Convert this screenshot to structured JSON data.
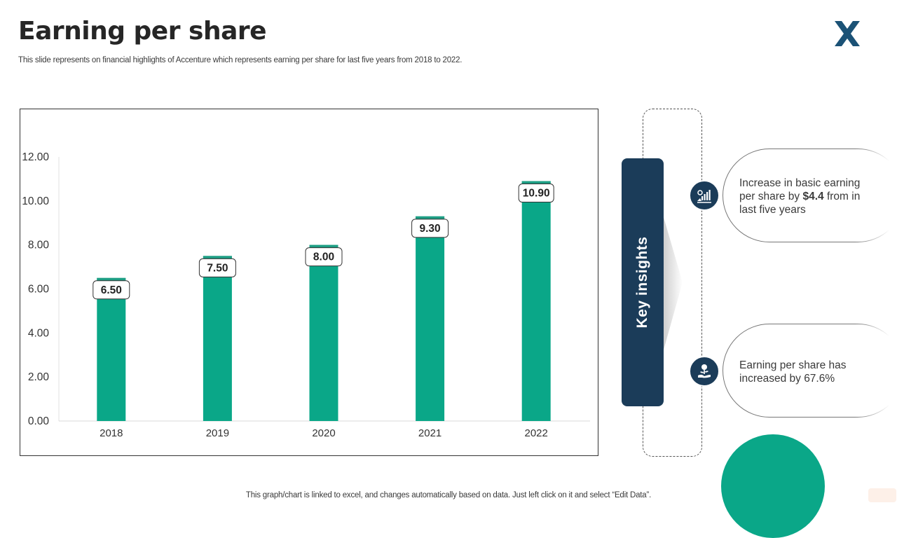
{
  "header": {
    "title": "Earning per share",
    "subtitle": "This slide represents on financial highlights of Accenture which represents earning per share for last five years from 2018 to  2022."
  },
  "brand": {
    "logo_icon": "x-logo-icon",
    "color": "#1b5276"
  },
  "chart_data": {
    "type": "bar",
    "categories": [
      "2018",
      "2019",
      "2020",
      "2021",
      "2022"
    ],
    "values": [
      6.5,
      7.5,
      8.0,
      9.3,
      10.9
    ],
    "data_labels": [
      "6.50",
      "7.50",
      "8.00",
      "9.30",
      "10.90"
    ],
    "y_ticks": [
      "0.00",
      "2.00",
      "4.00",
      "6.00",
      "8.00",
      "10.00",
      "12.00"
    ],
    "ylim": [
      0,
      12
    ],
    "grid": false,
    "bar_color": "#0aa788",
    "bar_top_color": "#1e9e84"
  },
  "insights": {
    "label": "Key insights",
    "items": [
      {
        "icon": "growth-chart-hand-icon",
        "pre": "Increase  in basic earning per share by ",
        "bold": "$4.4",
        "post": " from in last five years"
      },
      {
        "icon": "money-plant-hand-icon",
        "text": "Earning per share has increased by 67.6%"
      }
    ],
    "bar_color": "#1b3c59"
  },
  "footer": {
    "note": "This graph/chart is linked to excel,  and changes automatically based on data. Just left click on it and select “Edit Data”."
  }
}
